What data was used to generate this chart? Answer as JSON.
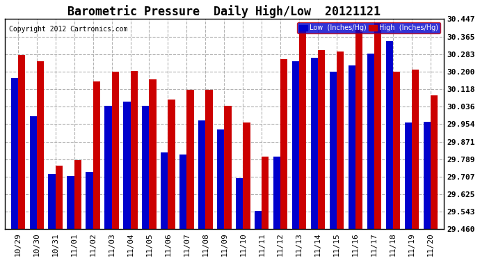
{
  "title": "Barometric Pressure  Daily High/Low  20121121",
  "copyright": "Copyright 2012 Cartronics.com",
  "ylim": [
    29.46,
    30.447
  ],
  "yticks": [
    29.46,
    29.543,
    29.625,
    29.707,
    29.789,
    29.871,
    29.954,
    30.036,
    30.118,
    30.2,
    30.283,
    30.365,
    30.447
  ],
  "dates": [
    "10/29",
    "10/30",
    "10/31",
    "11/01",
    "11/02",
    "11/03",
    "11/04",
    "11/05",
    "11/06",
    "11/07",
    "11/08",
    "11/09",
    "11/10",
    "11/11",
    "11/12",
    "11/13",
    "11/14",
    "11/15",
    "11/16",
    "11/17",
    "11/18",
    "11/19",
    "11/20"
  ],
  "low_values": [
    30.17,
    29.99,
    29.72,
    29.71,
    29.73,
    30.04,
    30.06,
    30.04,
    29.82,
    29.81,
    29.97,
    29.93,
    29.7,
    29.545,
    29.8,
    30.25,
    30.265,
    30.2,
    30.23,
    30.285,
    30.345,
    29.96,
    29.965
  ],
  "high_values": [
    30.28,
    30.25,
    29.76,
    29.785,
    30.155,
    30.2,
    30.205,
    30.165,
    30.07,
    30.115,
    30.115,
    30.04,
    29.96,
    29.8,
    30.26,
    30.42,
    30.3,
    30.295,
    30.395,
    30.43,
    30.2,
    30.21,
    30.09
  ],
  "low_color": "#0000cc",
  "high_color": "#cc0000",
  "background_color": "#ffffff",
  "grid_color": "#aaaaaa",
  "title_fontsize": 12,
  "tick_fontsize": 8,
  "legend_low_label": "Low  (Inches/Hg)",
  "legend_high_label": "High  (Inches/Hg)"
}
